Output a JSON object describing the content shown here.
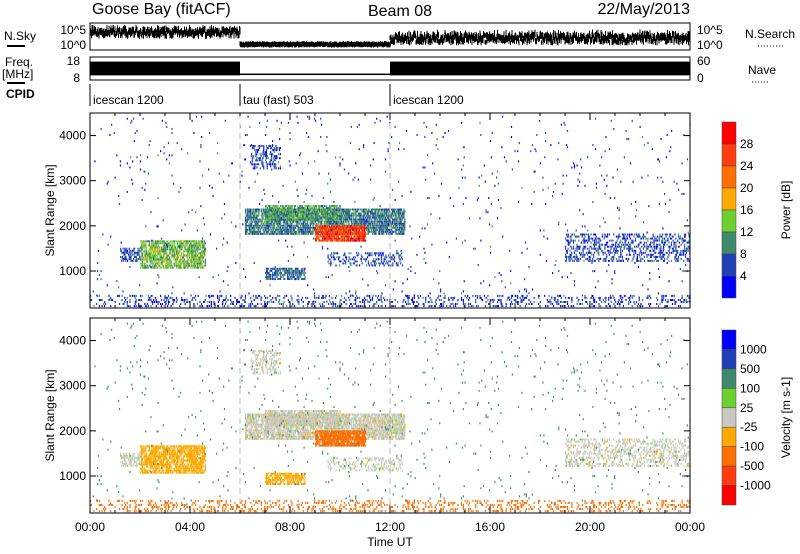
{
  "header": {
    "station": "Goose Bay (fitACF)",
    "beam": "Beam 08",
    "date": "22/May/2013"
  },
  "noise_panel": {
    "left_label": "N.Sky",
    "right_label": "N.Search",
    "left_ticks": [
      "10^5",
      "10^0"
    ],
    "right_ticks": [
      "10^5",
      "10^0"
    ],
    "segments": [
      {
        "t0": 0,
        "t1": 6,
        "level": 0.62,
        "spread": 0.25
      },
      {
        "t0": 6,
        "t1": 12,
        "level": 0.2,
        "spread": 0.06
      },
      {
        "t0": 12,
        "t1": 24,
        "level": 0.4,
        "spread": 0.3
      }
    ]
  },
  "freq_panel": {
    "left_label_1": "Freq.",
    "left_label_2": "[MHz]",
    "right_label": "Nave",
    "left_ticks": [
      "18",
      "8"
    ],
    "right_ticks": [
      "60",
      "0"
    ],
    "segments": [
      {
        "t0": 0,
        "t1": 6,
        "lo": 10,
        "hi": 16
      },
      {
        "t0": 6,
        "t1": 12,
        "lo": 10.3,
        "hi": 10.8
      },
      {
        "t0": 12,
        "t1": 24,
        "lo": 10,
        "hi": 16
      }
    ]
  },
  "cpid": {
    "label": "CPID",
    "modes": [
      {
        "t": 0,
        "name": "icescan 1200"
      },
      {
        "t": 6,
        "name": "tau (fast) 503"
      },
      {
        "t": 12,
        "name": "icescan 1200"
      }
    ]
  },
  "chart_data": [
    {
      "type": "heatmap",
      "title": "Power",
      "ylabel": "Slant Range [km]",
      "xlabel": "Time UT",
      "xlim": [
        0,
        24
      ],
      "ylim": [
        180,
        4500
      ],
      "yticks": [
        1000,
        2000,
        3000,
        4000
      ],
      "colorbar": {
        "label": "Power [dB]",
        "ticks": [
          "28",
          "24",
          "20",
          "16",
          "12",
          "8",
          "4"
        ],
        "colors": [
          "#ff0000",
          "#ff3c10",
          "#ff6e00",
          "#ffa800",
          "#6cd030",
          "#3f8a6c",
          "#2040b8",
          "#0000ff"
        ]
      },
      "regions": [
        {
          "t0": 6.2,
          "t1": 12.6,
          "r0": 1800,
          "r1": 2350,
          "value": 9,
          "density": 0.75
        },
        {
          "t0": 7.0,
          "t1": 10.0,
          "r0": 2100,
          "r1": 2450,
          "value": 11,
          "density": 0.7
        },
        {
          "t0": 9.0,
          "t1": 11.0,
          "r0": 1650,
          "r1": 2000,
          "value": 26,
          "density": 0.85
        },
        {
          "t0": 2.0,
          "t1": 4.6,
          "r0": 1050,
          "r1": 1650,
          "value": 13,
          "density": 0.7
        },
        {
          "t0": 1.2,
          "t1": 2.0,
          "r0": 1200,
          "r1": 1500,
          "value": 6,
          "density": 0.5
        },
        {
          "t0": 6.4,
          "t1": 7.6,
          "r0": 3250,
          "r1": 3750,
          "value": 6,
          "density": 0.35
        },
        {
          "t0": 7.0,
          "t1": 8.6,
          "r0": 800,
          "r1": 1050,
          "value": 8,
          "density": 0.6
        },
        {
          "t0": 9.5,
          "t1": 12.5,
          "r0": 1100,
          "r1": 1400,
          "value": 6,
          "density": 0.3
        },
        {
          "t0": 19.0,
          "t1": 24.0,
          "r0": 1200,
          "r1": 1800,
          "value": 6,
          "density": 0.35
        },
        {
          "t0": 0.0,
          "t1": 24.0,
          "r0": 200,
          "r1": 450,
          "value": 5,
          "density": 0.2
        },
        {
          "t0": 0.0,
          "t1": 24.0,
          "r0": 300,
          "r1": 4400,
          "value": 5,
          "density": 0.012
        }
      ]
    },
    {
      "type": "heatmap",
      "title": "Velocity",
      "ylabel": "Slant Range [km]",
      "xlabel": "Time UT",
      "xlim": [
        0,
        24
      ],
      "ylim": [
        180,
        4500
      ],
      "yticks": [
        1000,
        2000,
        3000,
        4000
      ],
      "xticks": [
        "00:00",
        "04:00",
        "08:00",
        "12:00",
        "16:00",
        "20:00",
        "00:00"
      ],
      "colorbar": {
        "label": "Velocity [m s-1]",
        "ticks": [
          "1000",
          "500",
          "100",
          "25",
          "-25",
          "-100",
          "-500",
          "-1000"
        ],
        "colors": [
          "#0000ff",
          "#2040b8",
          "#3f8a6c",
          "#6cd030",
          "#c8c8c0",
          "#ffa800",
          "#ff6e00",
          "#ff3c10",
          "#ff0000"
        ]
      },
      "regions": [
        {
          "t0": 6.2,
          "t1": 12.6,
          "r0": 1800,
          "r1": 2350,
          "value": 0,
          "density": 0.75
        },
        {
          "t0": 7.0,
          "t1": 10.0,
          "r0": 2100,
          "r1": 2450,
          "value": 0,
          "density": 0.7
        },
        {
          "t0": 9.0,
          "t1": 11.0,
          "r0": 1650,
          "r1": 2000,
          "value": -300,
          "density": 0.85
        },
        {
          "t0": 2.0,
          "t1": 4.6,
          "r0": 1050,
          "r1": 1650,
          "value": -60,
          "density": 0.7
        },
        {
          "t0": 1.2,
          "t1": 2.0,
          "r0": 1200,
          "r1": 1500,
          "value": 0,
          "density": 0.5
        },
        {
          "t0": 6.4,
          "t1": 7.6,
          "r0": 3250,
          "r1": 3750,
          "value": 0,
          "density": 0.35
        },
        {
          "t0": 7.0,
          "t1": 8.6,
          "r0": 800,
          "r1": 1050,
          "value": -60,
          "density": 0.6
        },
        {
          "t0": 9.5,
          "t1": 12.5,
          "r0": 1100,
          "r1": 1400,
          "value": 0,
          "density": 0.3
        },
        {
          "t0": 19.0,
          "t1": 24.0,
          "r0": 1200,
          "r1": 1800,
          "value": 0,
          "density": 0.35
        },
        {
          "t0": 0.0,
          "t1": 24.0,
          "r0": 200,
          "r1": 450,
          "value": -300,
          "density": 0.2
        },
        {
          "t0": 0.0,
          "t1": 24.0,
          "r0": 300,
          "r1": 4400,
          "value": 300,
          "density": 0.012
        }
      ]
    }
  ],
  "footer": {
    "xlabel": "Time UT"
  }
}
